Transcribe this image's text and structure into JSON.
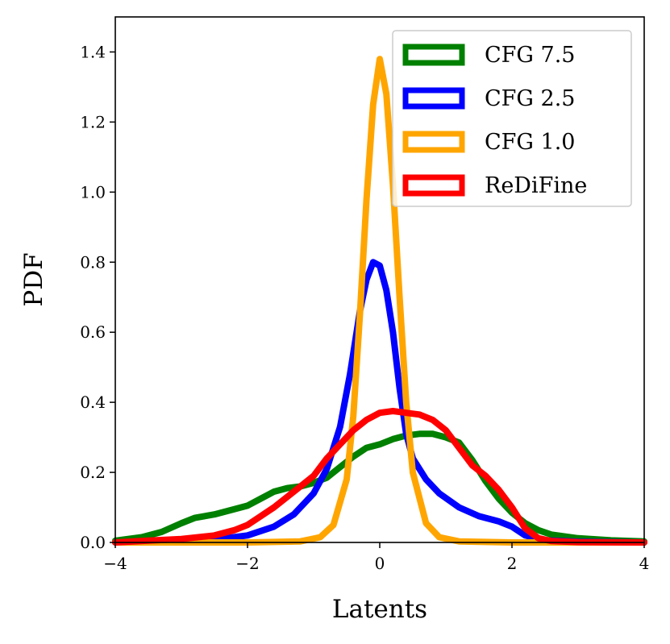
{
  "chart_data": {
    "type": "line",
    "title": "",
    "xlabel": "Latents",
    "ylabel": "PDF",
    "xlim": [
      -4,
      4
    ],
    "ylim": [
      0,
      1.5
    ],
    "x_ticks": [
      -4,
      -2,
      0,
      2,
      4
    ],
    "x_tick_labels": [
      "−4",
      "−2",
      "0",
      "2",
      "4"
    ],
    "y_ticks": [
      0,
      0.2,
      0.4,
      0.6,
      0.8,
      1.0,
      1.2,
      1.4
    ],
    "y_tick_labels": [
      "0.0",
      "0.2",
      "0.4",
      "0.6",
      "0.8",
      "1.0",
      "1.2",
      "1.4"
    ],
    "grid": false,
    "legend_position": "top-right",
    "series": [
      {
        "name": "CFG 7.5",
        "color": "#008000",
        "x": [
          -4.0,
          -3.6,
          -3.3,
          -3.0,
          -2.8,
          -2.5,
          -2.2,
          -2.0,
          -1.8,
          -1.6,
          -1.4,
          -1.2,
          -1.0,
          -0.8,
          -0.6,
          -0.4,
          -0.2,
          0.0,
          0.2,
          0.4,
          0.6,
          0.8,
          1.0,
          1.2,
          1.4,
          1.6,
          1.8,
          2.0,
          2.2,
          2.4,
          2.6,
          3.0,
          3.5,
          4.0
        ],
        "y": [
          0.005,
          0.015,
          0.03,
          0.055,
          0.07,
          0.08,
          0.095,
          0.105,
          0.125,
          0.145,
          0.155,
          0.16,
          0.17,
          0.185,
          0.215,
          0.245,
          0.27,
          0.28,
          0.295,
          0.305,
          0.31,
          0.31,
          0.3,
          0.285,
          0.235,
          0.175,
          0.125,
          0.085,
          0.055,
          0.035,
          0.022,
          0.012,
          0.006,
          0.003
        ]
      },
      {
        "name": "CFG 2.5",
        "color": "#0000ff",
        "x": [
          -4.0,
          -3.0,
          -2.5,
          -2.0,
          -1.6,
          -1.3,
          -1.0,
          -0.8,
          -0.6,
          -0.45,
          -0.3,
          -0.2,
          -0.1,
          0.0,
          0.1,
          0.2,
          0.3,
          0.4,
          0.5,
          0.7,
          0.9,
          1.2,
          1.5,
          1.8,
          2.0,
          2.2,
          2.5,
          3.0,
          4.0
        ],
        "y": [
          0.0,
          0.003,
          0.008,
          0.02,
          0.045,
          0.08,
          0.14,
          0.21,
          0.33,
          0.48,
          0.66,
          0.75,
          0.8,
          0.79,
          0.72,
          0.6,
          0.44,
          0.31,
          0.24,
          0.18,
          0.14,
          0.1,
          0.075,
          0.06,
          0.045,
          0.02,
          0.006,
          0.002,
          0.0
        ]
      },
      {
        "name": "CFG 1.0",
        "color": "#ffa500",
        "x": [
          -4.0,
          -2.0,
          -1.2,
          -0.9,
          -0.7,
          -0.5,
          -0.4,
          -0.3,
          -0.2,
          -0.1,
          0.0,
          0.1,
          0.2,
          0.3,
          0.4,
          0.5,
          0.7,
          0.9,
          1.2,
          2.0,
          4.0
        ],
        "y": [
          0.0,
          0.0,
          0.003,
          0.015,
          0.05,
          0.18,
          0.36,
          0.65,
          0.98,
          1.25,
          1.38,
          1.28,
          1.02,
          0.7,
          0.4,
          0.2,
          0.055,
          0.015,
          0.003,
          0.0,
          0.0
        ]
      },
      {
        "name": "ReDiFine",
        "color": "#ff0000",
        "x": [
          -4.0,
          -3.5,
          -3.0,
          -2.5,
          -2.2,
          -2.0,
          -1.8,
          -1.6,
          -1.4,
          -1.2,
          -1.0,
          -0.8,
          -0.6,
          -0.4,
          -0.2,
          0.0,
          0.2,
          0.4,
          0.6,
          0.8,
          1.0,
          1.2,
          1.4,
          1.6,
          1.8,
          2.0,
          2.2,
          2.4,
          2.6,
          3.0,
          4.0
        ],
        "y": [
          0.0,
          0.005,
          0.01,
          0.02,
          0.035,
          0.05,
          0.075,
          0.1,
          0.13,
          0.16,
          0.19,
          0.24,
          0.28,
          0.32,
          0.35,
          0.37,
          0.375,
          0.37,
          0.365,
          0.35,
          0.32,
          0.27,
          0.22,
          0.19,
          0.15,
          0.1,
          0.04,
          0.012,
          0.004,
          0.001,
          0.0
        ]
      }
    ]
  }
}
